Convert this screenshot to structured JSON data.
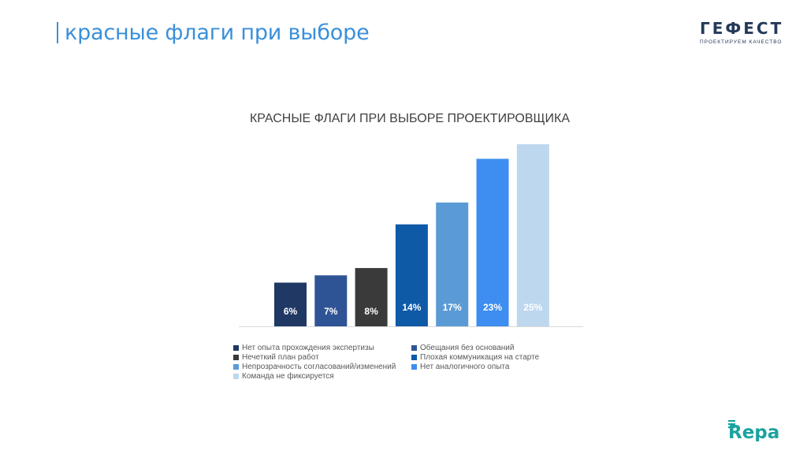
{
  "slide": {
    "title": "красные флаги при выборе"
  },
  "logo": {
    "name": "ГЕФЕСТ",
    "tagline": "ПРОЕКТИРУЕМ КАЧЕСТВО",
    "color": "#253a5a"
  },
  "brand_mark": {
    "name": "Repa",
    "color": "#1aa3a0"
  },
  "chart_data": {
    "type": "bar",
    "title": "КРАСНЫЕ ФЛАГИ ПРИ ВЫБОРЕ ПРОЕКТИРОВЩИКА",
    "xlabel": "",
    "ylabel": "",
    "ylim": [
      0,
      25
    ],
    "grid": false,
    "legend_position": "bottom",
    "series": [
      {
        "name": "Нет опыта прохождения экспертизы",
        "value": 6,
        "label": "6%",
        "color": "#1f3864"
      },
      {
        "name": "Обещания без оснований",
        "value": 7,
        "label": "7%",
        "color": "#2f5496"
      },
      {
        "name": "Нечеткий план работ",
        "value": 8,
        "label": "8%",
        "color": "#3a3a3a"
      },
      {
        "name": "Плохая коммуникация на старте",
        "value": 14,
        "label": "14%",
        "color": "#0e5aa7"
      },
      {
        "name": "Непрозрачность согласований/изменений",
        "value": 17,
        "label": "17%",
        "color": "#5b9bd5"
      },
      {
        "name": "Нет аналогичного опыта",
        "value": 23,
        "label": "23%",
        "color": "#3d8ef0"
      },
      {
        "name": "Команда не фиксируется",
        "value": 25,
        "label": "25%",
        "color": "#bdd7ee"
      }
    ]
  }
}
